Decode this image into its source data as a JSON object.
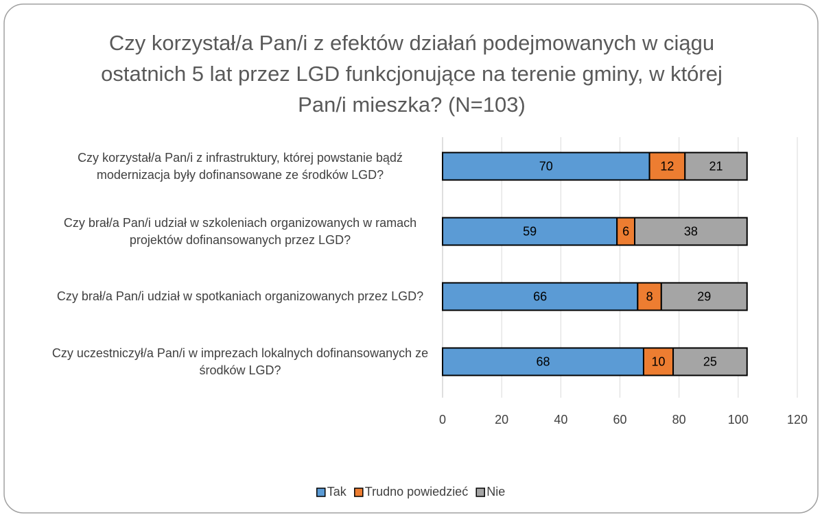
{
  "chart_data": {
    "type": "stacked-bar-horizontal",
    "title": "Czy korzystał/a Pan/i z efektów działań podejmowanych w ciągu ostatnich 5 lat przez LGD funkcjonujące na terenie gminy, w której Pan/i mieszka? (N=103)",
    "categories": [
      "Czy korzystał/a Pan/i z infrastruktury, której powstanie bądź modernizacja były dofinansowane ze środków LGD?",
      "Czy brał/a Pan/i udział w szkoleniach organizowanych w ramach projektów dofinansowanych przez LGD?",
      "Czy brał/a Pan/i udział w spotkaniach organizowanych przez LGD?",
      "Czy uczestniczył/a Pan/i w imprezach lokalnych dofinansowanych ze środków LGD?"
    ],
    "series": [
      {
        "name": "Tak",
        "color": "#5b9bd5",
        "values": [
          70,
          59,
          66,
          68
        ]
      },
      {
        "name": "Trudno powiedzieć",
        "color": "#ed7d31",
        "values": [
          12,
          6,
          8,
          10
        ]
      },
      {
        "name": "Nie",
        "color": "#a5a5a5",
        "values": [
          21,
          38,
          29,
          25
        ]
      }
    ],
    "xlim": [
      0,
      120
    ],
    "xticks": [
      0,
      20,
      40,
      60,
      80,
      100,
      120
    ],
    "grid": true,
    "legend": "bottom"
  }
}
